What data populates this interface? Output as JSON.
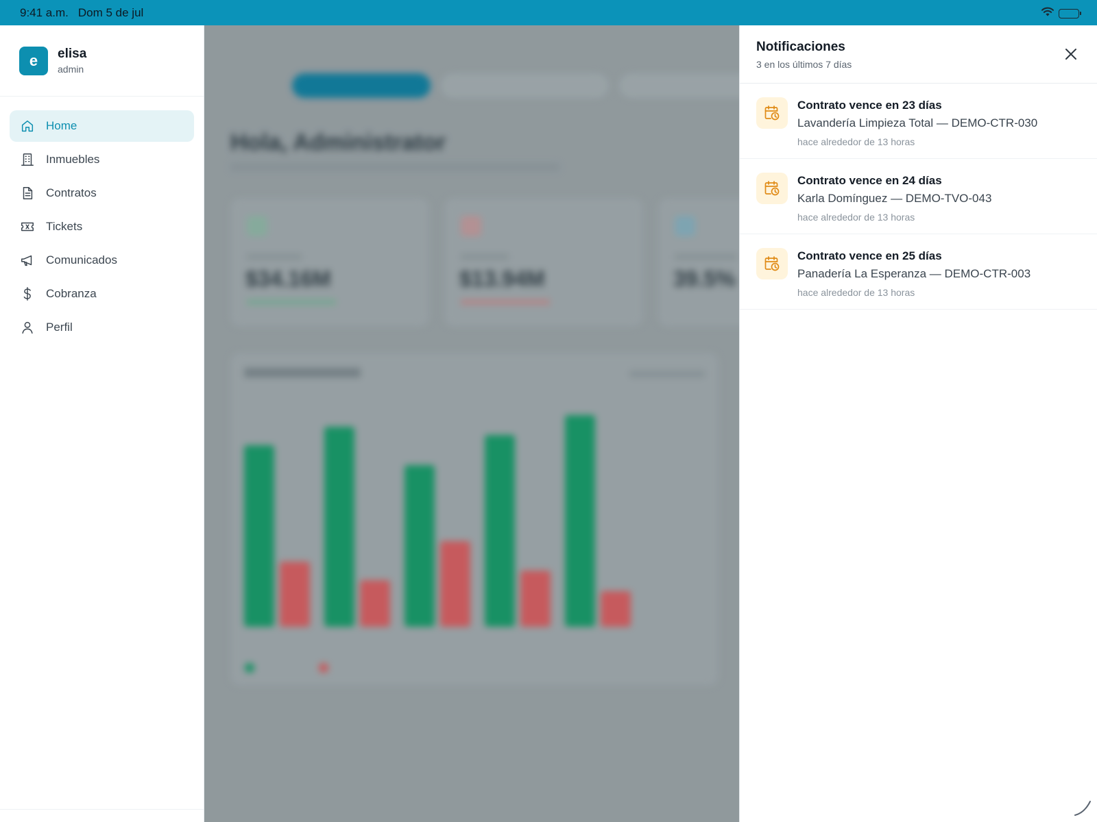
{
  "status_bar": {
    "time": "9:41 a.m.",
    "date": "Dom 5 de jul",
    "wifi_icon": "wifi-icon",
    "battery_icon": "battery-charging-icon"
  },
  "sidebar": {
    "user": {
      "initial": "e",
      "name": "elisa",
      "role": "admin"
    },
    "items": [
      {
        "label": "Home",
        "icon": "home-icon",
        "active": true
      },
      {
        "label": "Inmuebles",
        "icon": "building-icon",
        "active": false
      },
      {
        "label": "Contratos",
        "icon": "document-icon",
        "active": false
      },
      {
        "label": "Tickets",
        "icon": "ticket-icon",
        "active": false
      },
      {
        "label": "Comunicados",
        "icon": "megaphone-icon",
        "active": false
      },
      {
        "label": "Cobranza",
        "icon": "dollar-icon",
        "active": false
      },
      {
        "label": "Perfil",
        "icon": "user-icon",
        "active": false
      }
    ]
  },
  "notifications": {
    "title": "Notificaciones",
    "subtitle": "3 en los últimos 7 días",
    "close_icon": "close-icon",
    "items": [
      {
        "title": "Contrato vence en 23 días",
        "body": "Lavandería Limpieza Total — DEMO-CTR-030",
        "time": "hace alrededor de 13 horas",
        "icon": "calendar-clock-icon"
      },
      {
        "title": "Contrato vence en 24 días",
        "body": "Karla Domínguez — DEMO-TVO-043",
        "time": "hace alrededor de 13 horas",
        "icon": "calendar-clock-icon"
      },
      {
        "title": "Contrato vence en 25 días",
        "body": "Panadería La Esperanza — DEMO-CTR-003",
        "time": "hace alrededor de 13 horas",
        "icon": "calendar-clock-icon"
      }
    ]
  },
  "background_dashboard": {
    "greeting": "Hola, Administrator",
    "kpis": [
      {
        "value": "$34.16M",
        "color": "#1a9a6a"
      },
      {
        "value": "$13.94M",
        "color": "#d9534f"
      },
      {
        "value": "39.5%",
        "color": "#1e8fb0"
      }
    ],
    "colors": {
      "green": "#129a66",
      "red": "#d85c5e",
      "accent": "#0d8fb0"
    }
  }
}
